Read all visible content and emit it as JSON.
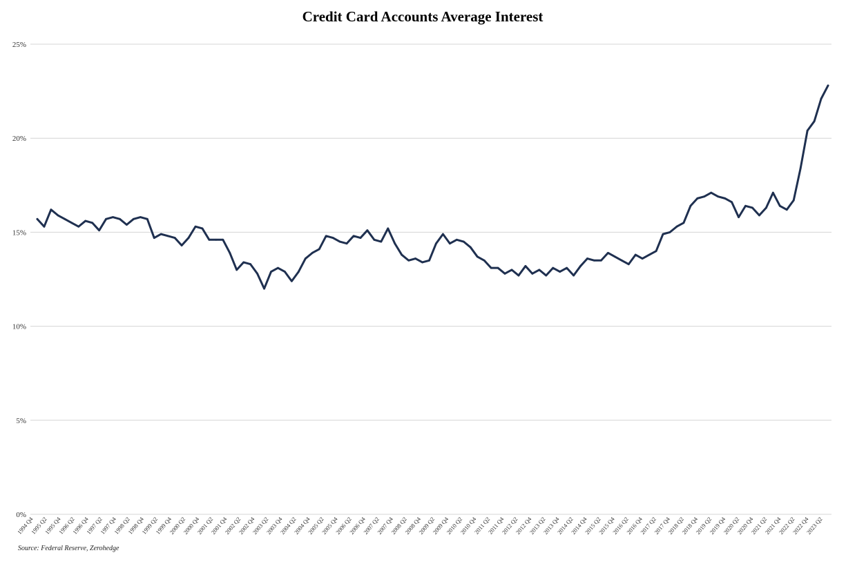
{
  "chart_data": {
    "type": "line",
    "title": "Credit Card Accounts Average Interest",
    "source": "Source: Federal Reserve, Zerohedge",
    "xlabel": "",
    "ylabel": "",
    "ylim": [
      0,
      25
    ],
    "y_ticks": [
      "0%",
      "5%",
      "10%",
      "15%",
      "20%",
      "25%"
    ],
    "y_tick_values": [
      0,
      5,
      10,
      15,
      20,
      25
    ],
    "grid": true,
    "legend": "none",
    "line_color": "#1f3050",
    "x_tick_labels": [
      "1994 Q4",
      "1995 Q2",
      "1995 Q4",
      "1996 Q2",
      "1996 Q4",
      "1997 Q2",
      "1997 Q4",
      "1998 Q2",
      "1998 Q4",
      "1999 Q2",
      "1999 Q4",
      "2000 Q2",
      "2000 Q4",
      "2001 Q2",
      "2001 Q4",
      "2002 Q2",
      "2002 Q4",
      "2003 Q2",
      "2003 Q4",
      "2004 Q2",
      "2004 Q4",
      "2005 Q2",
      "2005 Q4",
      "2006 Q2",
      "2006 Q4",
      "2007 Q2",
      "2007 Q4",
      "2008 Q2",
      "2008 Q4",
      "2009 Q2",
      "2009 Q4",
      "2010 Q2",
      "2010 Q4",
      "2011 Q2",
      "2011 Q4",
      "2012 Q2",
      "2012 Q4",
      "2013 Q2",
      "2013 Q4",
      "2014 Q2",
      "2014 Q4",
      "2015 Q2",
      "2015 Q4",
      "2016 Q2",
      "2016 Q4",
      "2017 Q2",
      "2017 Q4",
      "2018 Q2",
      "2018 Q4",
      "2019 Q2",
      "2019 Q4",
      "2020 Q2",
      "2020 Q4",
      "2021 Q2",
      "2021 Q4",
      "2022 Q2",
      "2022 Q4",
      "2023 Q2"
    ],
    "series": [
      {
        "values": [
          15.7,
          15.3,
          16.2,
          15.9,
          15.7,
          15.5,
          15.3,
          15.6,
          15.5,
          15.1,
          15.7,
          15.8,
          15.7,
          15.4,
          15.7,
          15.8,
          15.7,
          14.7,
          14.9,
          14.8,
          14.7,
          14.3,
          14.7,
          15.3,
          15.2,
          14.6,
          14.6,
          14.6,
          13.9,
          13.0,
          13.4,
          13.3,
          12.8,
          12.0,
          12.9,
          13.1,
          12.9,
          12.4,
          12.9,
          13.6,
          13.9,
          14.1,
          14.8,
          14.7,
          14.5,
          14.4,
          14.8,
          14.7,
          15.1,
          14.6,
          14.5,
          15.2,
          14.4,
          13.8,
          13.5,
          13.6,
          13.4,
          13.5,
          14.4,
          14.9,
          14.4,
          14.6,
          14.5,
          14.2,
          13.7,
          13.5,
          13.1,
          13.1,
          12.8,
          13.0,
          12.7,
          13.2,
          12.8,
          13.0,
          12.7,
          13.1,
          12.9,
          13.1,
          12.7,
          13.2,
          13.6,
          13.5,
          13.5,
          13.9,
          13.7,
          13.5,
          13.3,
          13.8,
          13.6,
          13.8,
          14.0,
          14.9,
          15.0,
          15.3,
          15.5,
          16.4,
          16.8,
          16.9,
          17.1,
          16.9,
          16.8,
          16.6,
          15.8,
          16.4,
          16.3,
          15.9,
          16.3,
          17.1,
          16.4,
          16.2,
          16.7,
          18.4,
          20.4,
          20.9,
          22.1,
          22.8
        ]
      }
    ]
  }
}
